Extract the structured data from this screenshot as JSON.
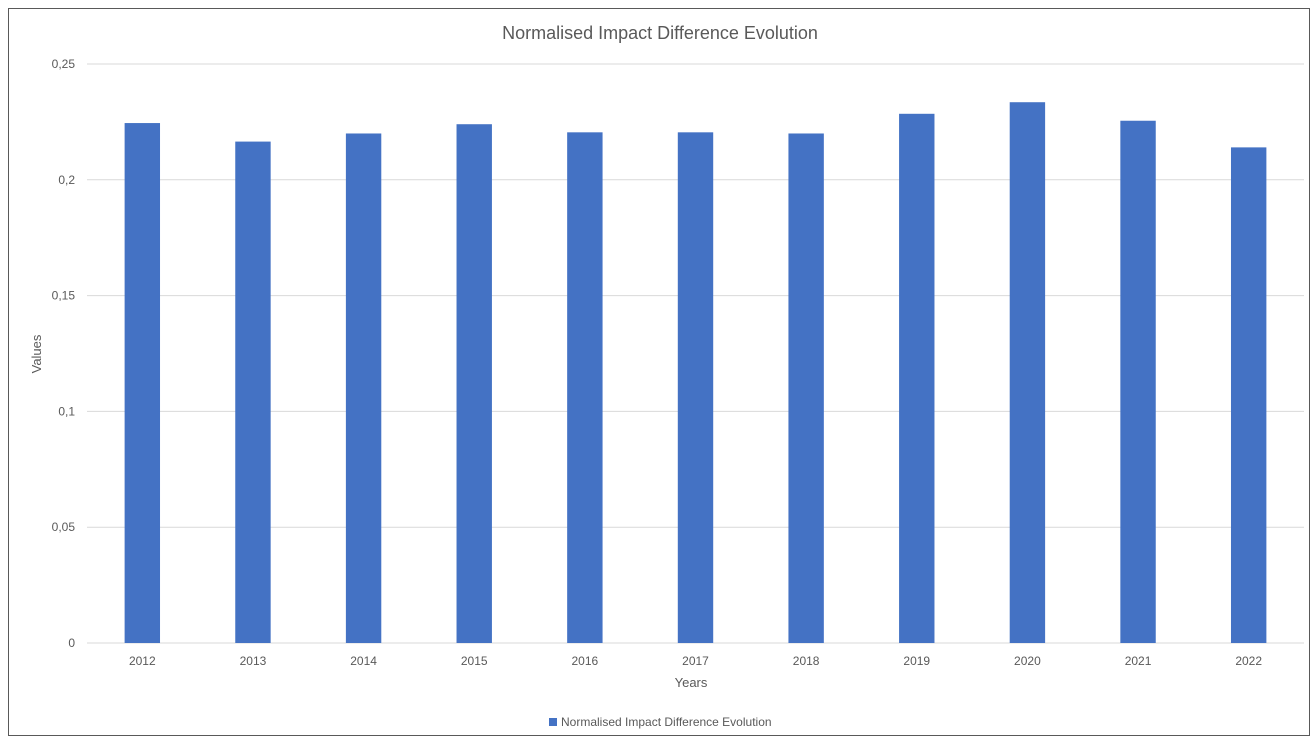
{
  "chart_data": {
    "type": "bar",
    "title": "Normalised Impact Difference Evolution",
    "xlabel": "Years",
    "ylabel": "Values",
    "categories": [
      "2012",
      "2013",
      "2014",
      "2015",
      "2016",
      "2017",
      "2018",
      "2019",
      "2020",
      "2021",
      "2022"
    ],
    "series": [
      {
        "name": "Normalised Impact Difference Evolution",
        "values": [
          0.2245,
          0.2165,
          0.22,
          0.224,
          0.2205,
          0.2205,
          0.22,
          0.2285,
          0.2335,
          0.2255,
          0.214
        ],
        "color": "#4472c4"
      }
    ],
    "ylim": [
      0,
      0.25
    ],
    "yticks": [
      0,
      0.05,
      0.1,
      0.15,
      0.2,
      0.25
    ],
    "ytick_labels": [
      "0",
      "0,05",
      "0,1",
      "0,15",
      "0,2",
      "0,25"
    ],
    "grid": true,
    "legend_position": "bottom"
  }
}
